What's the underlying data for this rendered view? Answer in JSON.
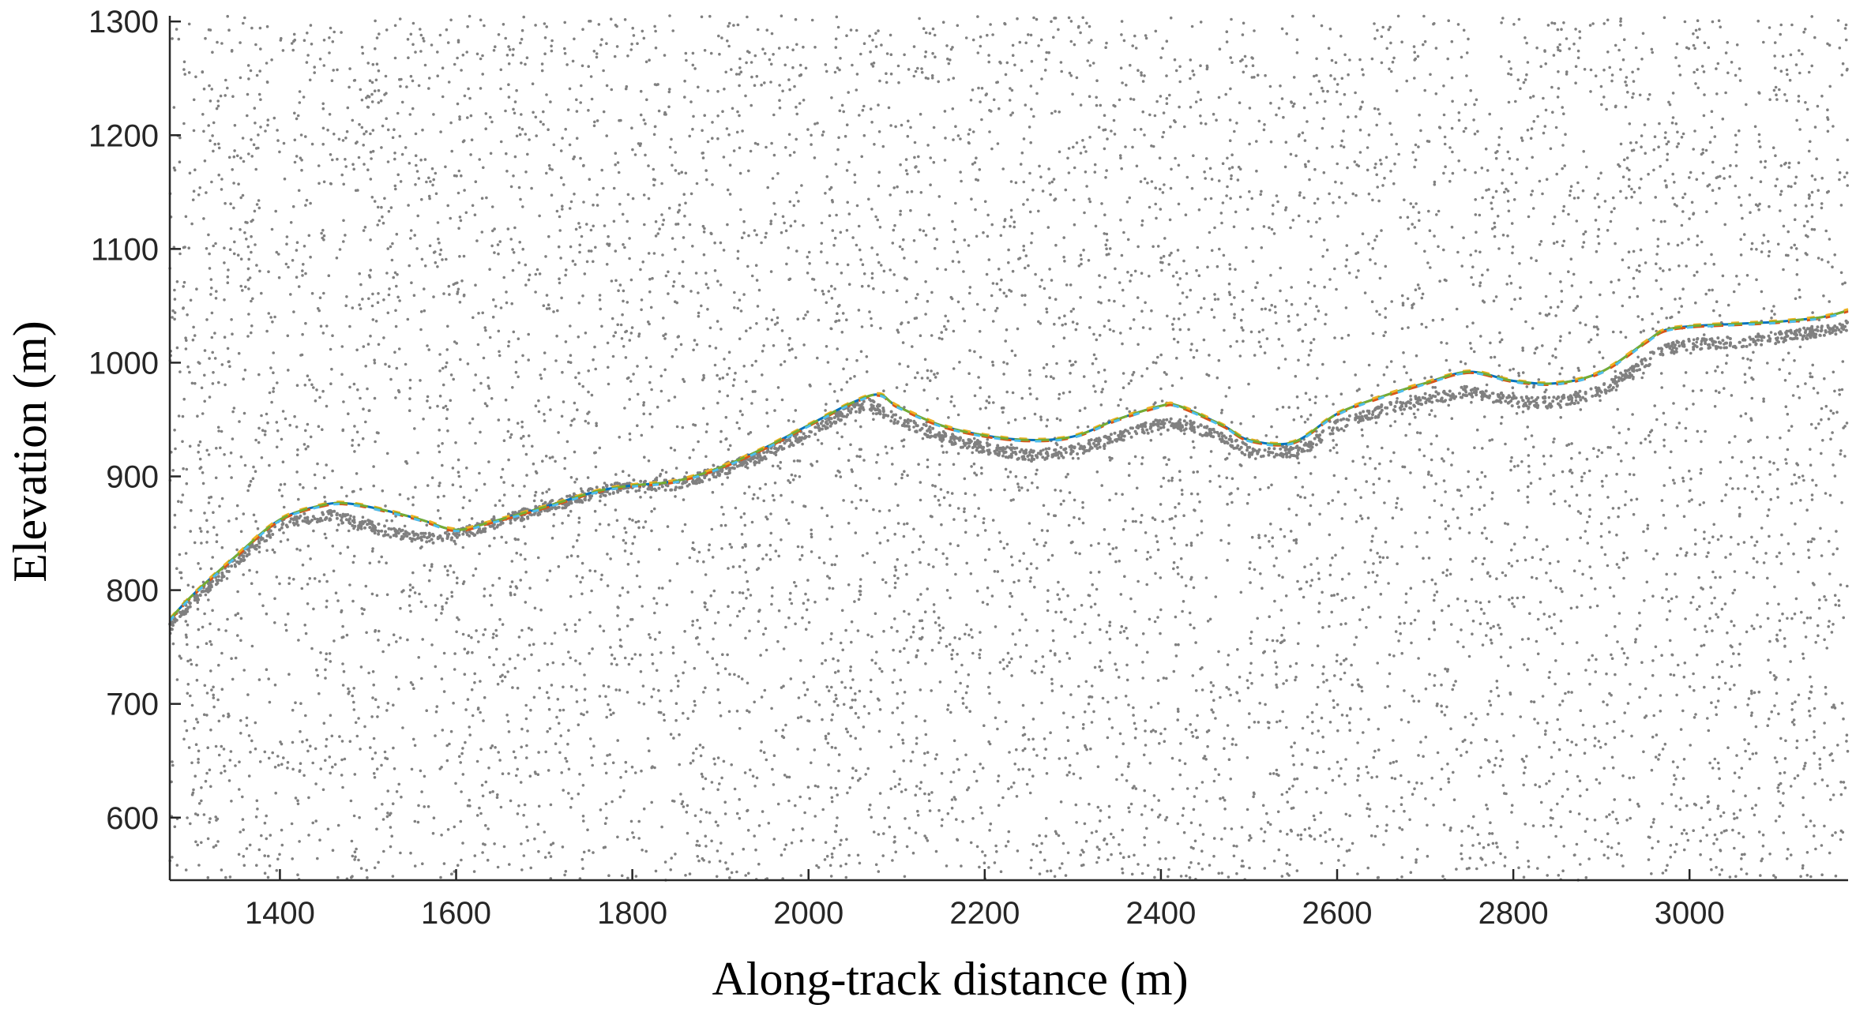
{
  "chart_data": {
    "type": "scatter",
    "title": "",
    "xlabel": "Along-track distance (m)",
    "ylabel": "Elevation (m)",
    "xlim": [
      1275,
      3180
    ],
    "ylim": [
      545,
      1305
    ],
    "xticks": [
      1400,
      1600,
      1800,
      2000,
      2200,
      2400,
      2600,
      2800,
      3000
    ],
    "yticks": [
      600,
      700,
      800,
      900,
      1000,
      1100,
      1200,
      1300
    ],
    "grid": false,
    "legend": "none",
    "background_noise": {
      "description_color": "#808080",
      "approx_point_count": 9000,
      "elevation_range": [
        545,
        1305
      ]
    },
    "ground_photons": {
      "color": "#808080",
      "x": [
        1275,
        1300,
        1350,
        1400,
        1450,
        1480,
        1520,
        1560,
        1600,
        1640,
        1700,
        1760,
        1800,
        1850,
        1900,
        1950,
        2000,
        2050,
        2070,
        2100,
        2150,
        2200,
        2250,
        2300,
        2350,
        2400,
        2430,
        2470,
        2500,
        2560,
        2600,
        2650,
        2700,
        2750,
        2800,
        2850,
        2900,
        2950,
        2970,
        3000,
        3050,
        3100,
        3150,
        3180
      ],
      "y": [
        768,
        790,
        825,
        858,
        866,
        862,
        852,
        845,
        848,
        858,
        872,
        886,
        892,
        893,
        905,
        920,
        938,
        960,
        963,
        950,
        935,
        925,
        918,
        922,
        935,
        946,
        945,
        935,
        922,
        922,
        945,
        958,
        968,
        975,
        966,
        965,
        975,
        1000,
        1012,
        1016,
        1018,
        1022,
        1028,
        1032
      ]
    },
    "series": [
      {
        "color": "#0072BD",
        "x": [
          1275,
          1300,
          1350,
          1400,
          1450,
          1480,
          1520,
          1560,
          1600,
          1640,
          1700,
          1760,
          1800,
          1850,
          1900,
          1950,
          2000,
          2050,
          2080,
          2100,
          2150,
          2200,
          2250,
          2300,
          2350,
          2400,
          2420,
          2470,
          2500,
          2550,
          2600,
          2650,
          2700,
          2750,
          2800,
          2850,
          2900,
          2950,
          2970,
          3000,
          3050,
          3100,
          3150,
          3180
        ],
        "y": [
          774,
          795,
          830,
          862,
          875,
          876,
          870,
          862,
          853,
          860,
          873,
          887,
          892,
          896,
          908,
          925,
          945,
          965,
          972,
          962,
          945,
          936,
          932,
          935,
          950,
          962,
          962,
          945,
          932,
          930,
          955,
          970,
          982,
          992,
          984,
          982,
          992,
          1018,
          1028,
          1032,
          1034,
          1036,
          1040,
          1046
        ]
      },
      {
        "color": "#D95319",
        "x": [
          1275,
          1300,
          1350,
          1400,
          1450,
          1480,
          1520,
          1560,
          1600,
          1640,
          1700,
          1760,
          1800,
          1850,
          1900,
          1950,
          2000,
          2050,
          2080,
          2100,
          2150,
          2200,
          2250,
          2300,
          2350,
          2400,
          2420,
          2470,
          2500,
          2550,
          2600,
          2650,
          2700,
          2750,
          2800,
          2850,
          2900,
          2950,
          2970,
          3000,
          3050,
          3100,
          3150,
          3180
        ],
        "y": [
          773,
          794,
          829,
          861,
          874,
          875,
          869,
          861,
          852,
          859,
          872,
          886,
          891,
          895,
          907,
          924,
          944,
          964,
          971,
          961,
          944,
          935,
          931,
          934,
          949,
          961,
          961,
          944,
          931,
          929,
          954,
          969,
          981,
          991,
          983,
          981,
          991,
          1017,
          1027,
          1031,
          1033,
          1035,
          1039,
          1045
        ]
      },
      {
        "color": "#EDB120",
        "x": [
          1275,
          1300,
          1350,
          1400,
          1450,
          1480,
          1520,
          1560,
          1600,
          1640,
          1700,
          1760,
          1800,
          1850,
          1900,
          1950,
          2000,
          2050,
          2080,
          2100,
          2150,
          2200,
          2250,
          2300,
          2350,
          2400,
          2420,
          2470,
          2500,
          2550,
          2600,
          2650,
          2700,
          2750,
          2800,
          2850,
          2900,
          2950,
          2970,
          3000,
          3050,
          3100,
          3150,
          3180
        ],
        "y": [
          775,
          796,
          831,
          863,
          876,
          877,
          871,
          863,
          854,
          861,
          874,
          888,
          893,
          897,
          909,
          926,
          946,
          966,
          973,
          963,
          946,
          937,
          933,
          936,
          951,
          963,
          963,
          946,
          933,
          931,
          956,
          971,
          983,
          993,
          985,
          983,
          993,
          1019,
          1029,
          1033,
          1035,
          1037,
          1041,
          1047
        ]
      },
      {
        "color": "#77AC30",
        "x": [
          1275,
          1300,
          1350,
          1400,
          1450,
          1480,
          1520,
          1560,
          1600,
          1640,
          1700,
          1760,
          1800,
          1850,
          1900,
          1950,
          2000,
          2050,
          2080,
          2100,
          2150,
          2200,
          2250,
          2300,
          2350,
          2400,
          2420,
          2470,
          2500,
          2550,
          2600,
          2650,
          2700,
          2750,
          2800,
          2850,
          2900,
          2950,
          2970,
          3000,
          3050,
          3100,
          3150,
          3180
        ],
        "y": [
          774,
          795,
          830,
          862,
          875,
          876,
          870,
          862,
          853,
          860,
          873,
          887,
          892,
          896,
          908,
          925,
          945,
          965,
          972,
          962,
          945,
          936,
          932,
          935,
          950,
          962,
          962,
          945,
          932,
          930,
          955,
          970,
          982,
          992,
          984,
          982,
          992,
          1018,
          1028,
          1032,
          1034,
          1036,
          1040,
          1046
        ]
      },
      {
        "color": "#4DBEEE",
        "x": [
          1275,
          1300,
          1350,
          1400,
          1450,
          1480,
          1520,
          1560,
          1600,
          1640,
          1700,
          1760,
          1800,
          1850,
          1900,
          1950,
          2000,
          2050,
          2080,
          2100,
          2150,
          2200,
          2250,
          2300,
          2350,
          2400,
          2420,
          2470,
          2500,
          2550,
          2600,
          2650,
          2700,
          2750,
          2800,
          2850,
          2900,
          2950,
          2970,
          3000,
          3050,
          3100,
          3150,
          3180
        ],
        "y": [
          773,
          794,
          829,
          861,
          874,
          875,
          869,
          861,
          852,
          859,
          872,
          886,
          891,
          895,
          907,
          924,
          944,
          964,
          971,
          961,
          944,
          935,
          931,
          934,
          949,
          961,
          961,
          944,
          931,
          929,
          954,
          969,
          981,
          991,
          983,
          981,
          991,
          1017,
          1027,
          1031,
          1033,
          1035,
          1039,
          1045
        ]
      }
    ]
  }
}
